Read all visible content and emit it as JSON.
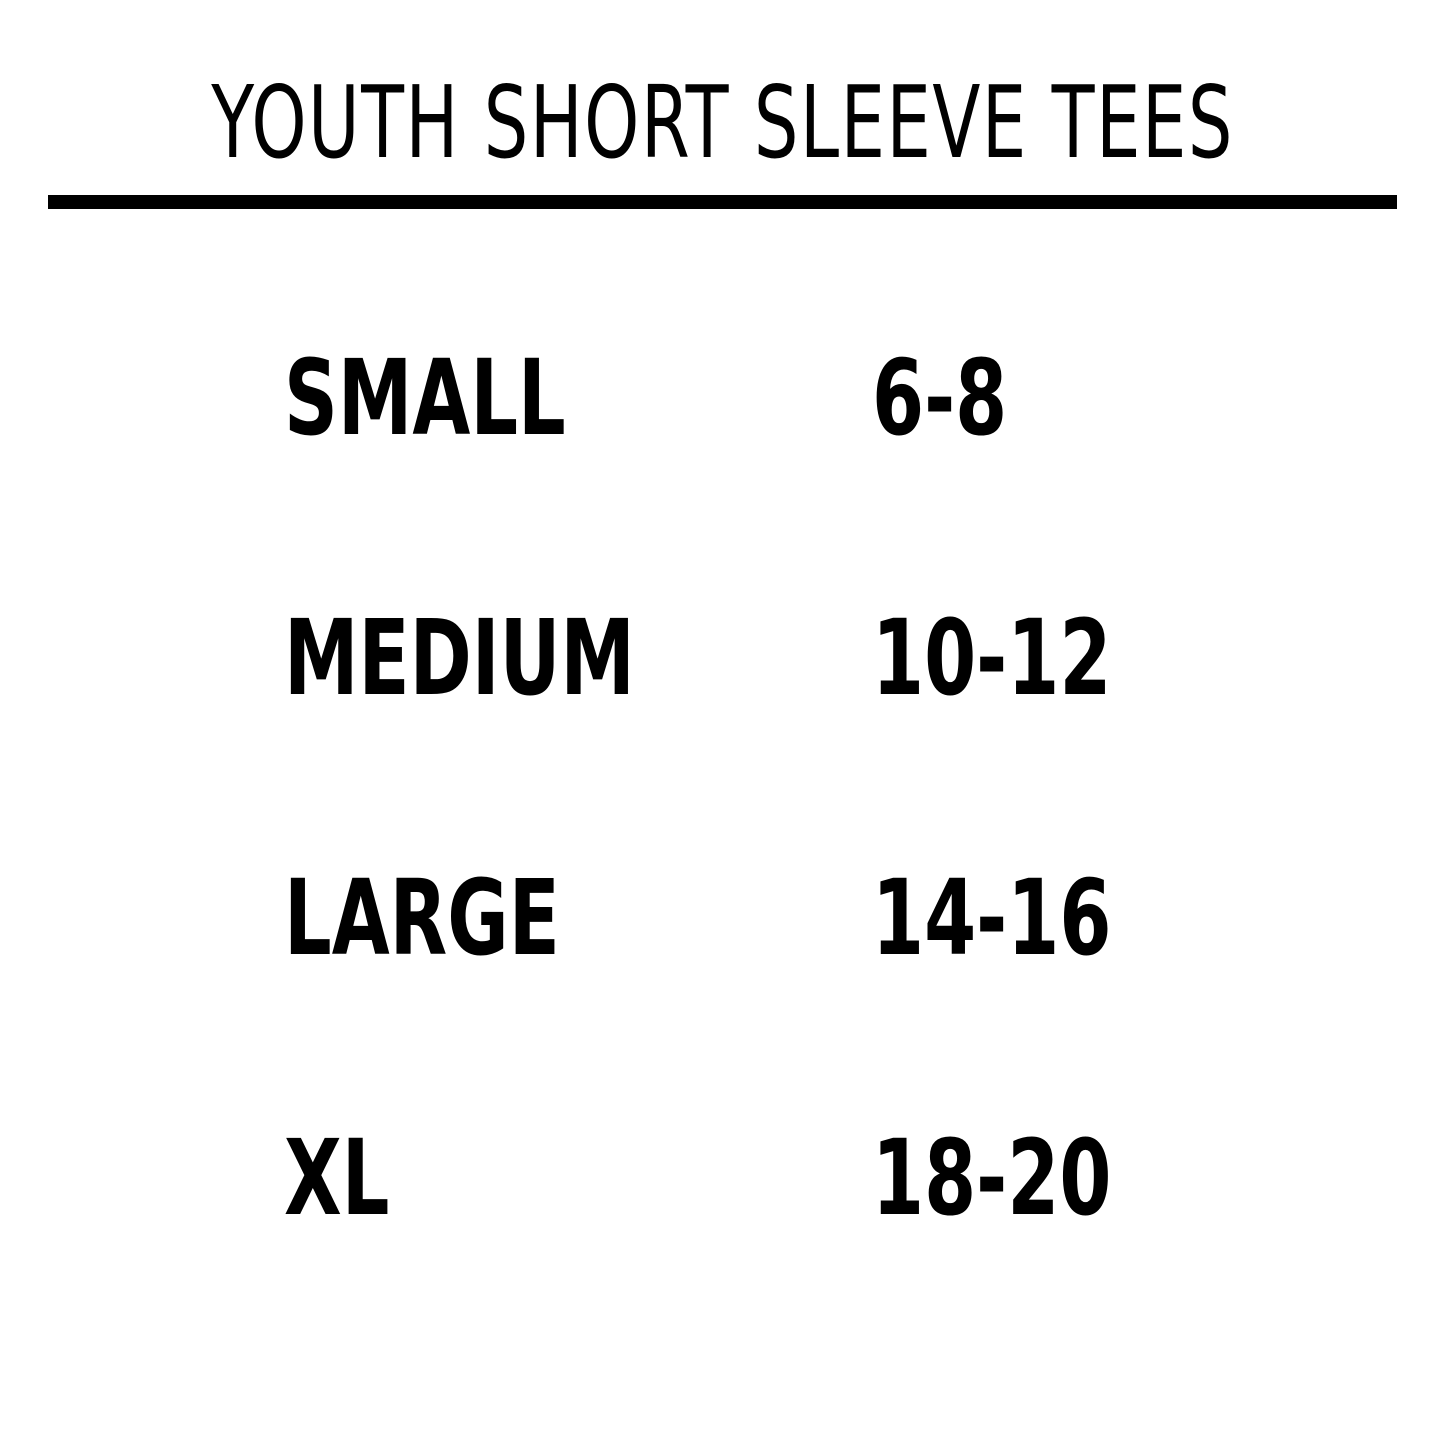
{
  "header": {
    "title": "YOUTH SHORT SLEEVE TEES"
  },
  "table": {
    "rows": [
      [
        "SMALL",
        "6-8"
      ],
      [
        "MEDIUM",
        "10-12"
      ],
      [
        "LARGE",
        "14-16"
      ],
      [
        "XL",
        "18-20"
      ]
    ]
  }
}
